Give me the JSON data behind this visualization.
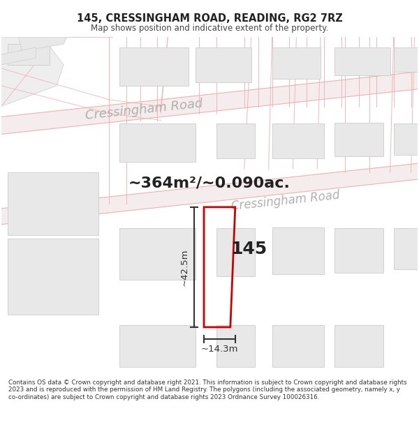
{
  "title": "145, CRESSINGHAM ROAD, READING, RG2 7RZ",
  "subtitle": "Map shows position and indicative extent of the property.",
  "footer": "Contains OS data © Crown copyright and database right 2021. This information is subject to Crown copyright and database rights 2023 and is reproduced with the permission of HM Land Registry. The polygons (including the associated geometry, namely x, y co-ordinates) are subject to Crown copyright and database rights 2023 Ordnance Survey 100026316.",
  "area_text": "~364m²/~0.090ac.",
  "dim_v": "~42.5m",
  "dim_h": "~14.3m",
  "label": "145",
  "road_name_upper": "Cressingham Road",
  "road_name_lower": "Cressingham Road",
  "map_bg": "#ffffff",
  "road_band_color": "#f0e8e8",
  "road_line_color": "#f0b0b0",
  "road_label_color": "#b0b0b0",
  "building_face_color": "#e8e8e8",
  "building_edge_color": "#cccccc",
  "property_color": "#cc0000",
  "dim_color": "#333333",
  "text_color": "#222222"
}
